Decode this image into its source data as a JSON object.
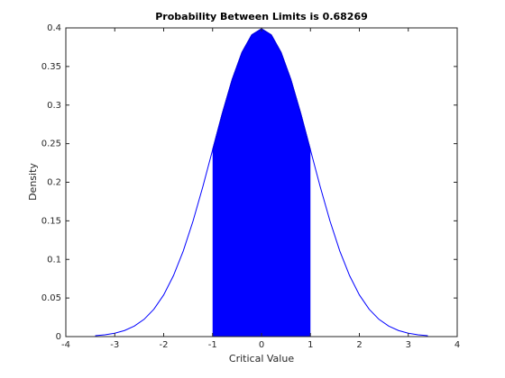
{
  "chart_data": {
    "type": "line",
    "title": "Probability Between Limits is 0.68269",
    "xlabel": "Critical Value",
    "ylabel": "Density",
    "x": [
      -3.4,
      -3.2,
      -3.0,
      -2.8,
      -2.6,
      -2.4,
      -2.2,
      -2.0,
      -1.8,
      -1.6,
      -1.4,
      -1.2,
      -1.0,
      -0.8,
      -0.6,
      -0.4,
      -0.2,
      0,
      0.2,
      0.4,
      0.6,
      0.8,
      1.0,
      1.2,
      1.4,
      1.6,
      1.8,
      2.0,
      2.2,
      2.4,
      2.6,
      2.8,
      3.0,
      3.2,
      3.4
    ],
    "series": [
      {
        "color": "#0000ff",
        "values": [
          0.0012,
          0.0024,
          0.0044,
          0.0079,
          0.0136,
          0.0224,
          0.0355,
          0.054,
          0.079,
          0.1109,
          0.1497,
          0.1942,
          0.242,
          0.2897,
          0.3332,
          0.3683,
          0.391,
          0.3989,
          0.391,
          0.3683,
          0.3332,
          0.2897,
          0.242,
          0.1942,
          0.1497,
          0.1109,
          0.079,
          0.054,
          0.0355,
          0.0224,
          0.0136,
          0.0079,
          0.0044,
          0.0024,
          0.0012
        ]
      }
    ],
    "shade": {
      "range": [
        -1,
        1
      ],
      "color": "#0000ff",
      "edge": "#000000"
    },
    "xlim": [
      -4,
      4
    ],
    "xticks": [
      -4,
      -3,
      -2,
      -1,
      0,
      1,
      2,
      3,
      4
    ],
    "ylim": [
      0,
      0.4
    ],
    "yticks": [
      0,
      0.05,
      0.1,
      0.15,
      0.2,
      0.25,
      0.3,
      0.35,
      0.4
    ],
    "grid": false
  }
}
